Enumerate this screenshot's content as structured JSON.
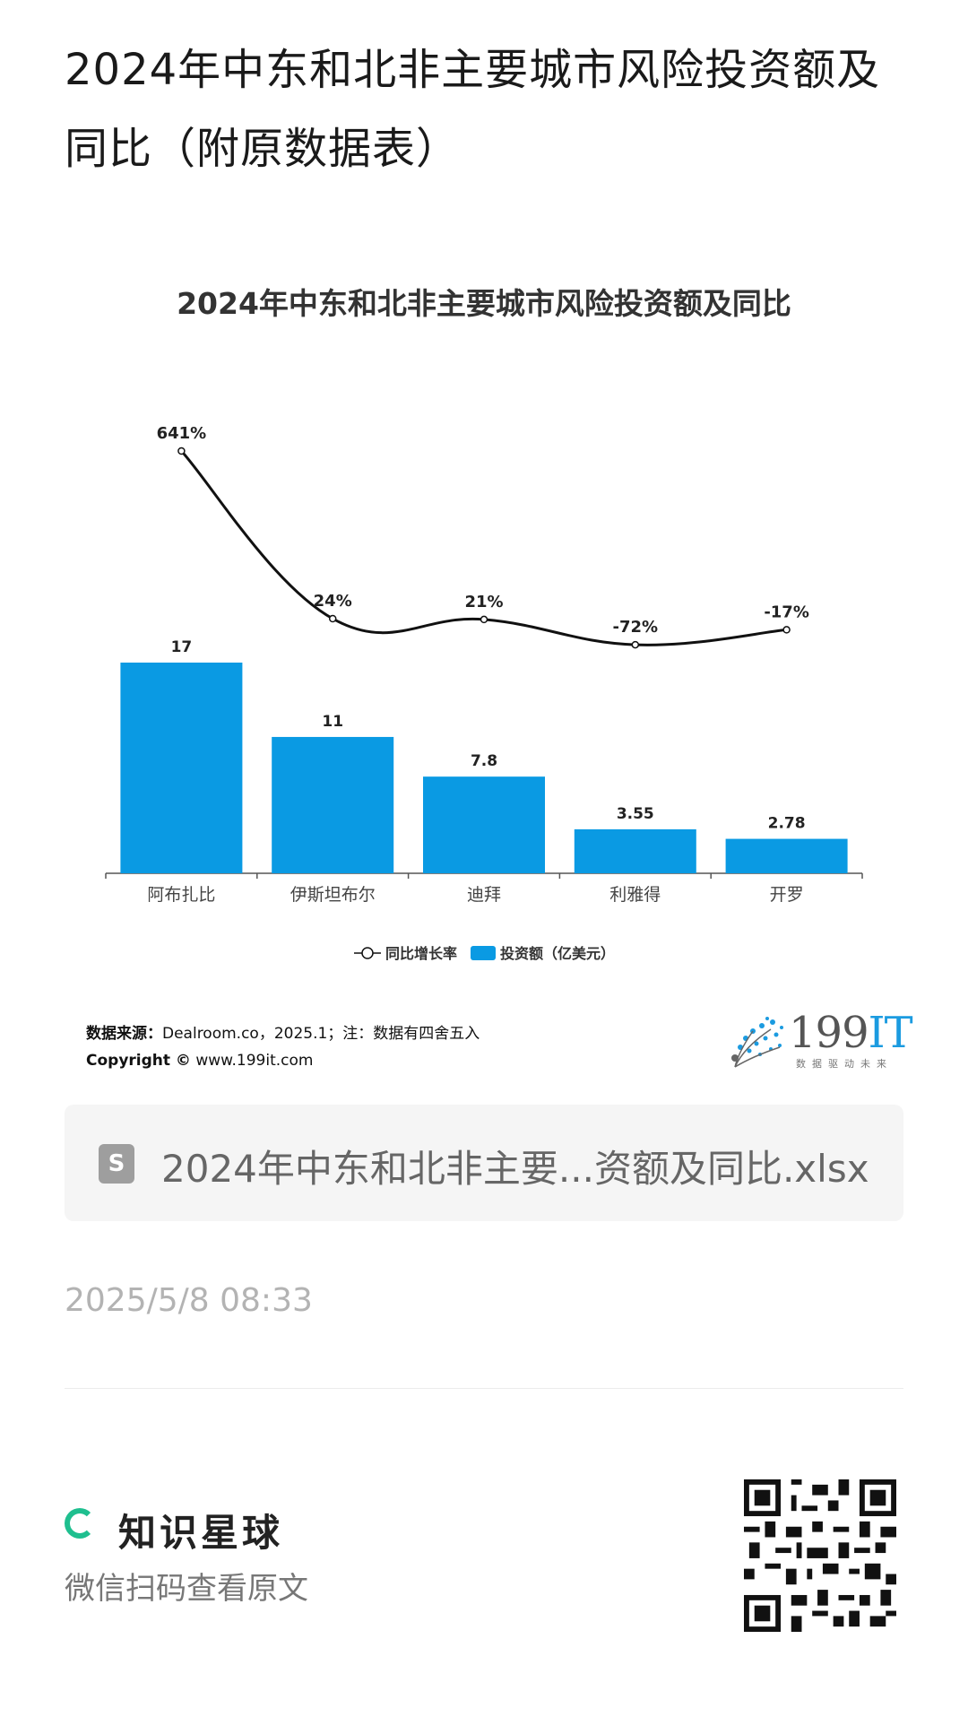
{
  "page_title": "2024年中东和北非主要城市风险投资额及同比（附原数据表）",
  "chart_data": {
    "type": "bar",
    "title": "2024年中东和北非主要城市风险投资额及同比",
    "categories": [
      "阿布扎比",
      "伊斯坦布尔",
      "迪拜",
      "利雅得",
      "开罗"
    ],
    "series": [
      {
        "name": "投资额（亿美元）",
        "type": "bar",
        "values": [
          17,
          11,
          7.8,
          3.55,
          2.78
        ],
        "labels": [
          "17",
          "11",
          "7.8",
          "3.55",
          "2.78"
        ],
        "color": "#0a9ae3"
      },
      {
        "name": "同比增长率",
        "type": "line",
        "values": [
          641,
          24,
          21,
          -72,
          -17
        ],
        "labels": [
          "641%",
          "24%",
          "21%",
          "-72%",
          "-17%"
        ],
        "color": "#111111"
      }
    ],
    "legend_position": "bottom",
    "grid": false
  },
  "source": {
    "label": "数据来源：",
    "text": "Dealroom.co，2025.1；注：数据有四舍五入",
    "copyright_label": "Copyright ©",
    "copyright_site": "www.199it.com"
  },
  "logo": {
    "main": "199",
    "accent": "IT",
    "tagline": "数据驱动未来"
  },
  "file": {
    "icon_letter": "S",
    "name": "2024年中东和北非主要...资额及同比.xlsx"
  },
  "timestamp": "2025/5/8 08:33",
  "brand": {
    "name": "知识星球",
    "subtitle": "微信扫码查看原文"
  }
}
